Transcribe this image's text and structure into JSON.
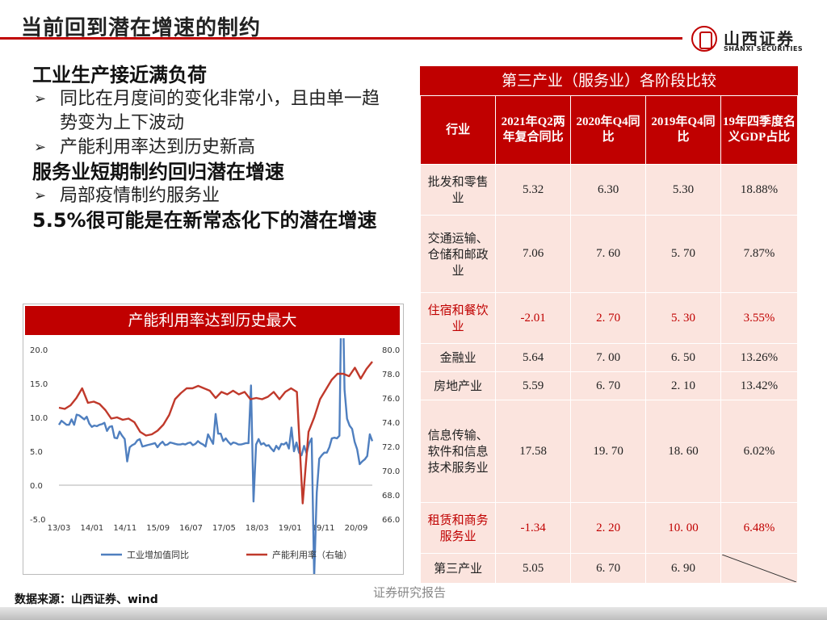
{
  "slide_title": "当前回到潜在增速的制约",
  "logo": {
    "cn": "山西证券",
    "en": "SHANXI SECURITIES"
  },
  "bullets": [
    {
      "kind": "main",
      "text": "工业生产接近满负荷"
    },
    {
      "kind": "sub",
      "text": "同比在月度间的变化非常小，且由单一趋势变为上下波动"
    },
    {
      "kind": "sub",
      "text": "产能利用率达到历史新高"
    },
    {
      "kind": "main",
      "text": "服务业短期制约回归潜在增速"
    },
    {
      "kind": "sub",
      "text": "局部疫情制约服务业"
    },
    {
      "kind": "main",
      "text": "5.5%很可能是在新常态化下的潜在增速"
    }
  ],
  "bullet_arrow": "➢",
  "chart_data": {
    "type": "line",
    "title": "产能利用率达到历史最大",
    "x_tick_labels": [
      "13/03",
      "14/01",
      "14/11",
      "15/09",
      "16/07",
      "17/05",
      "18/03",
      "19/01",
      "19/11",
      "20/09"
    ],
    "y_left": {
      "ticks": [
        "20.0",
        "15.0",
        "10.0",
        "5.0",
        "0.0",
        "-5.0"
      ],
      "range": [
        -5,
        20
      ]
    },
    "y_right": {
      "ticks": [
        "80.0",
        "78.0",
        "76.0",
        "74.0",
        "72.0",
        "70.0",
        "68.0",
        "66.0"
      ],
      "range": [
        66,
        80
      ]
    },
    "series": [
      {
        "name": "工业增加值同比",
        "axis": "left",
        "color": "#4f7fbf",
        "values": [
          8.9,
          9.5,
          9.2,
          8.9,
          8.9,
          9.7,
          8.9,
          10.4,
          10.3,
          10.0,
          9.7,
          10.1,
          9.1,
          8.6,
          8.8,
          8.7,
          8.9,
          9.0,
          9.2,
          8.0,
          8.6,
          8.7,
          7.0,
          6.9,
          7.9,
          7.3,
          6.8,
          3.5,
          5.6,
          5.9,
          6.1,
          6.6,
          6.8,
          5.7,
          5.8,
          5.9,
          6.0,
          6.1,
          6.2,
          5.6,
          6.1,
          6.4,
          5.9,
          6.0,
          6.3,
          6.2,
          6.1,
          6.0,
          6.0,
          6.1,
          6.0,
          6.2,
          6.3,
          5.9,
          6.1,
          6.5,
          6.2,
          6.0,
          5.7,
          7.5,
          6.8,
          6.1,
          10.5,
          7.6,
          7.6,
          6.5,
          6.9,
          6.4,
          6.0,
          6.3,
          6.2,
          6.0,
          6.0,
          6.1,
          6.2,
          6.2,
          14.7,
          -2.4,
          6.0,
          6.8,
          6.0,
          6.2,
          5.8,
          5.9,
          5.4,
          5.0,
          5.8,
          5.3,
          6.1,
          6.0,
          6.3,
          5.4,
          8.5,
          5.0,
          6.3,
          4.8,
          4.4,
          5.8,
          4.7,
          6.2,
          6.9,
          -13.5,
          -1.1,
          3.9,
          4.4,
          4.8,
          4.8,
          5.6,
          6.9,
          7.0,
          6.9,
          7.3,
          35.1,
          14.1,
          9.8,
          8.8,
          8.3,
          6.4,
          5.3,
          3.1,
          3.5,
          3.8,
          4.3,
          7.5,
          6.5
        ],
        "label": "工业增加值同比"
      },
      {
        "name": "产能利用率（右轴）",
        "axis": "right",
        "color": "#c0392b",
        "values": [
          75.2,
          75.1,
          75.4,
          76.0,
          76.8,
          75.6,
          75.7,
          75.5,
          75.0,
          74.3,
          74.4,
          74.2,
          74.3,
          74.0,
          73.2,
          72.9,
          73.0,
          73.3,
          73.8,
          74.6,
          75.9,
          76.4,
          76.8,
          76.8,
          77.0,
          76.8,
          76.6,
          76.0,
          76.5,
          76.3,
          76.6,
          76.3,
          76.5,
          75.9,
          76.0,
          75.9,
          76.1,
          76.5,
          75.9,
          76.5,
          76.8,
          76.5,
          67.3,
          73.2,
          74.4,
          75.9,
          76.7,
          77.5,
          78.0,
          78.0,
          77.8,
          78.5,
          77.6,
          78.4,
          79.0
        ],
        "label": "产能利用率（右轴）"
      }
    ],
    "legend": {
      "position": "bottom"
    }
  },
  "table": {
    "title": "第三产业（服务业）各阶段比较",
    "columns": [
      "行业",
      "2021年Q2两年复合同比",
      "2020年Q4同比",
      "2019年Q4同比",
      "19年四季度名义GDP占比"
    ],
    "rows": [
      {
        "name": "批发和零售业",
        "values": [
          "5.32",
          "6.30",
          "5.30",
          "18.88%"
        ],
        "highlight": false
      },
      {
        "name": "交通运输、仓储和邮政业",
        "values": [
          "7.06",
          "7. 60",
          "5. 70",
          "7.87%"
        ],
        "highlight": false
      },
      {
        "name": "住宿和餐饮业",
        "values": [
          "-2.01",
          "2. 70",
          "5. 30",
          "3.55%"
        ],
        "highlight": true
      },
      {
        "name": "金融业",
        "values": [
          "5.64",
          "7. 00",
          "6. 50",
          "13.26%"
        ],
        "highlight": false
      },
      {
        "name": "房地产业",
        "values": [
          "5.59",
          "6. 70",
          "2. 10",
          "13.42%"
        ],
        "highlight": false
      },
      {
        "name": "信息传输、软件和信息技术服务业",
        "values": [
          "17.58",
          "19. 70",
          "18. 60",
          "6.02%"
        ],
        "highlight": false
      },
      {
        "name": "租赁和商务服务业",
        "values": [
          "-1.34",
          "2. 20",
          "10. 00",
          "6.48%"
        ],
        "highlight": true
      },
      {
        "name": "第三产业",
        "values": [
          "5.05",
          "6. 70",
          "6. 90",
          ""
        ],
        "highlight": false
      }
    ]
  },
  "footer": {
    "source": "数据来源：山西证券、wind",
    "center": "证券研究报告"
  }
}
